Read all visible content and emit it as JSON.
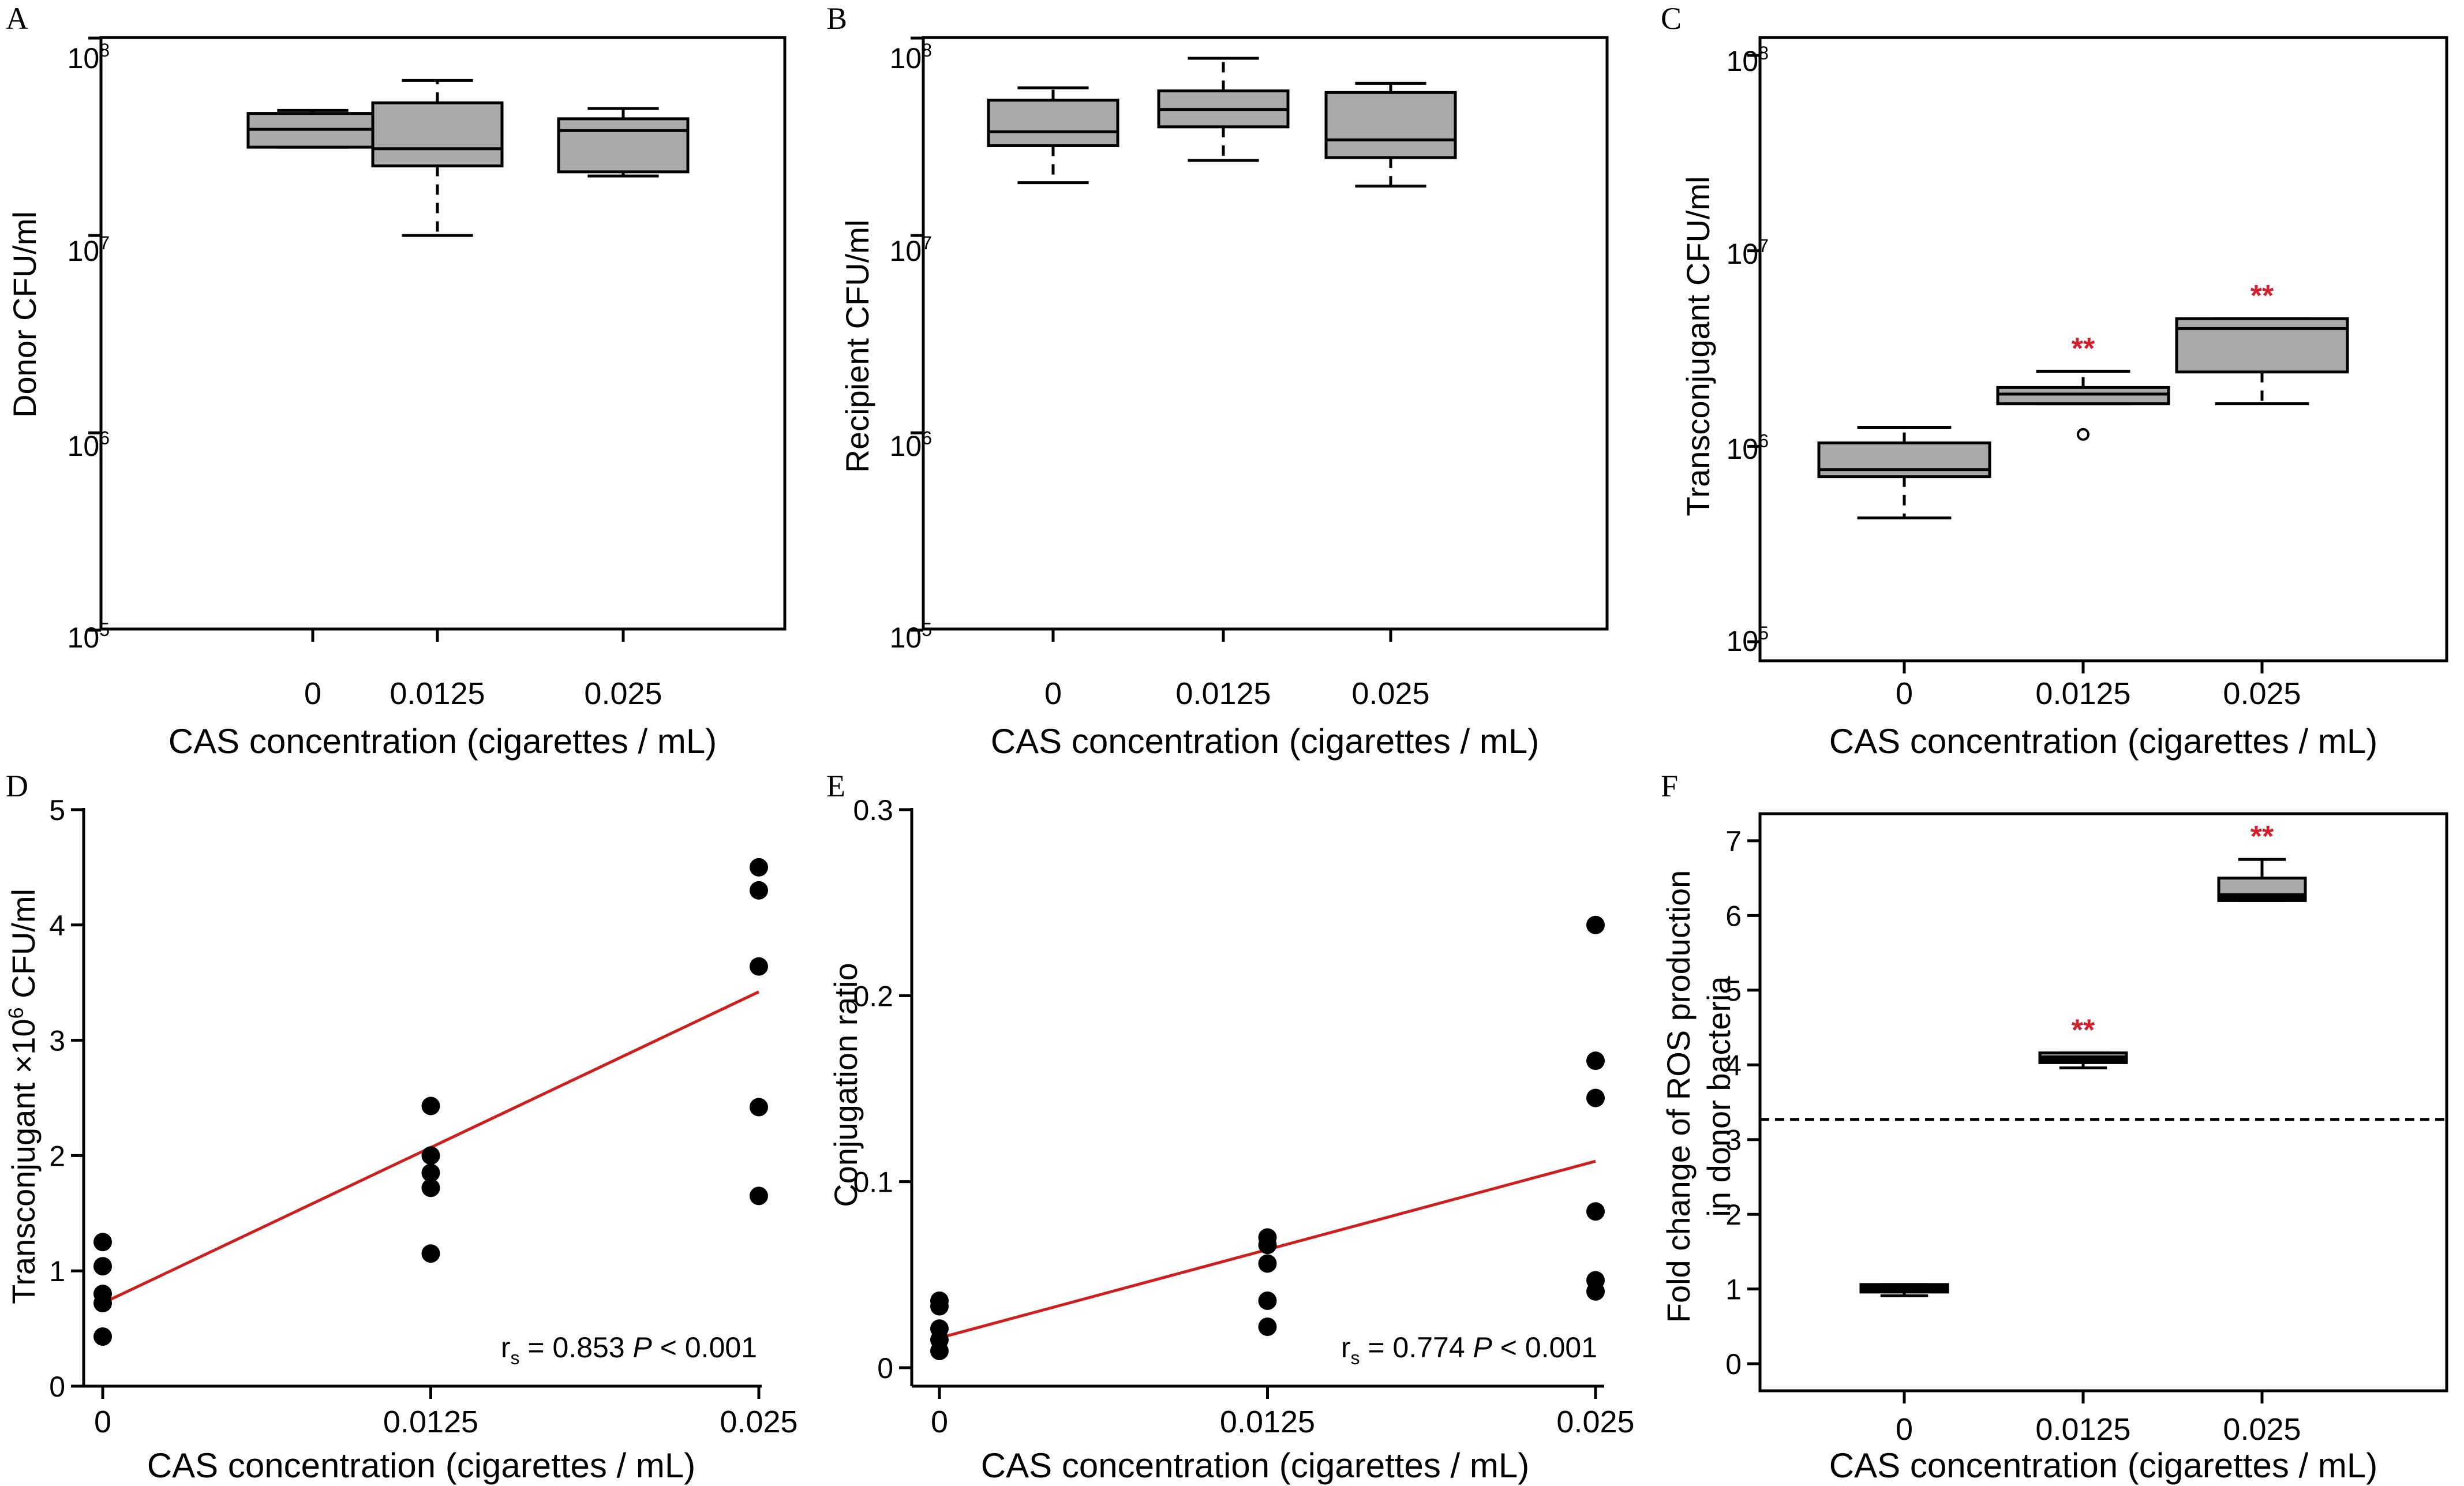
{
  "chart_data": [
    {
      "panel": "A",
      "type": "box",
      "yscale": "log",
      "ylabel": "Donor CFU/ml",
      "xlabel": "CAS concentration (cigarettes / mL)",
      "ylim": [
        100000,
        100000000
      ],
      "yticks": [
        {
          "base": "10",
          "exp": "5",
          "value": 100000
        },
        {
          "base": "10",
          "exp": "6",
          "value": 1000000
        },
        {
          "base": "10",
          "exp": "7",
          "value": 10000000
        },
        {
          "base": "10",
          "exp": "8",
          "value": 100000000
        }
      ],
      "categories": [
        "0",
        "0.0125",
        "0.025"
      ],
      "boxes": [
        {
          "min": 28000000,
          "q1": 28000000,
          "median": 34500000,
          "q3": 41500000,
          "max": 43000000,
          "sig": ""
        },
        {
          "min": 10000000,
          "q1": 22500000,
          "median": 27500000,
          "q3": 47000000,
          "max": 61000000,
          "sig": ""
        },
        {
          "min": 20000000,
          "q1": 21000000,
          "median": 34000000,
          "q3": 39000000,
          "max": 44000000,
          "sig": ""
        }
      ]
    },
    {
      "panel": "B",
      "type": "box",
      "yscale": "log",
      "ylabel": "Recipient CFU/ml",
      "xlabel": "CAS concentration (cigarettes / mL)",
      "ylim": [
        100000,
        100000000
      ],
      "yticks": [
        {
          "base": "10",
          "exp": "5",
          "value": 100000
        },
        {
          "base": "10",
          "exp": "6",
          "value": 1000000
        },
        {
          "base": "10",
          "exp": "7",
          "value": 10000000
        },
        {
          "base": "10",
          "exp": "8",
          "value": 100000000
        }
      ],
      "categories": [
        "0",
        "0.0125",
        "0.025"
      ],
      "boxes": [
        {
          "min": 18500000,
          "q1": 28500000,
          "median": 33500000,
          "q3": 48500000,
          "max": 56000000,
          "sig": ""
        },
        {
          "min": 24000000,
          "q1": 35500000,
          "median": 43500000,
          "q3": 54000000,
          "max": 79000000,
          "sig": ""
        },
        {
          "min": 17800000,
          "q1": 24800000,
          "median": 30500000,
          "q3": 53000000,
          "max": 59000000,
          "sig": ""
        }
      ]
    },
    {
      "panel": "C",
      "type": "box",
      "yscale": "log",
      "ylabel": "Transconjugant CFU/ml",
      "xlabel": "CAS concentration (cigarettes / mL)",
      "ylim": [
        100000,
        100000000
      ],
      "yticks": [
        {
          "base": "10",
          "exp": "5",
          "value": 100000
        },
        {
          "base": "10",
          "exp": "6",
          "value": 1000000
        },
        {
          "base": "10",
          "exp": "7",
          "value": 10000000
        },
        {
          "base": "10",
          "exp": "8",
          "value": 100000000
        }
      ],
      "categories": [
        "0",
        "0.0125",
        "0.025"
      ],
      "boxes": [
        {
          "min": 430000,
          "q1": 700000,
          "median": 760000,
          "q3": 1040000,
          "max": 1250000,
          "sig": ""
        },
        {
          "min": 1650000,
          "q1": 1650000,
          "median": 1850000,
          "q3": 2000000,
          "max": 2420000,
          "sig": "**"
        },
        {
          "min": 1650000,
          "q1": 2400000,
          "median": 4000000,
          "q3": 4500000,
          "max": 4500000,
          "sig": "**"
        }
      ],
      "outliers": [
        {
          "category": "0.0125",
          "value": 1150000
        }
      ]
    },
    {
      "panel": "D",
      "type": "scatter",
      "ylabel_main": "Transconjugant ×10",
      "ylabel_sup": "6",
      "ylabel_end": " CFU/ml",
      "xlabel": "CAS concentration (cigarettes / mL)",
      "xlim": [
        0,
        0.025
      ],
      "ylim": [
        0,
        5
      ],
      "xticks": [
        {
          "label": "0",
          "value": 0
        },
        {
          "label": "0.0125",
          "value": 0.0125
        },
        {
          "label": "0.025",
          "value": 0.025
        }
      ],
      "yticks": [
        {
          "label": "0",
          "value": 0
        },
        {
          "label": "1",
          "value": 1
        },
        {
          "label": "2",
          "value": 2
        },
        {
          "label": "3",
          "value": 3
        },
        {
          "label": "4",
          "value": 4
        },
        {
          "label": "5",
          "value": 5
        }
      ],
      "points": [
        [
          0,
          1.25
        ],
        [
          0,
          1.04
        ],
        [
          0,
          0.8
        ],
        [
          0,
          0.72
        ],
        [
          0,
          0.43
        ],
        [
          0.0125,
          2.43
        ],
        [
          0.0125,
          2.0
        ],
        [
          0.0125,
          1.85
        ],
        [
          0.0125,
          1.72
        ],
        [
          0.0125,
          1.15
        ],
        [
          0.025,
          4.5
        ],
        [
          0.025,
          4.3
        ],
        [
          0.025,
          3.64
        ],
        [
          0.025,
          2.42
        ],
        [
          0.025,
          1.65
        ]
      ],
      "fit_line": [
        [
          0,
          0.72
        ],
        [
          0.025,
          3.42
        ]
      ],
      "stat": {
        "r": "r",
        "sub": "s",
        "mid": " = 0.853 ",
        "p": "P",
        "end": " < 0.001"
      }
    },
    {
      "panel": "E",
      "type": "scatter",
      "ylabel": "Conjugation ratio",
      "xlabel": "CAS concentration (cigarettes / mL)",
      "xlim": [
        0,
        0.025
      ],
      "ylim": [
        0,
        0.3
      ],
      "xticks": [
        {
          "label": "0",
          "value": 0
        },
        {
          "label": "0.0125",
          "value": 0.0125
        },
        {
          "label": "0.025",
          "value": 0.025
        }
      ],
      "yticks": [
        {
          "label": "0",
          "value": 0
        },
        {
          "label": "0.1",
          "value": 0.1
        },
        {
          "label": "0.2",
          "value": 0.2
        },
        {
          "label": "0.3",
          "value": 0.3
        }
      ],
      "points": [
        [
          0,
          0.036
        ],
        [
          0,
          0.033
        ],
        [
          0,
          0.021
        ],
        [
          0,
          0.015
        ],
        [
          0,
          0.009
        ],
        [
          0.0125,
          0.07
        ],
        [
          0.0125,
          0.066
        ],
        [
          0.0125,
          0.056
        ],
        [
          0.0125,
          0.036
        ],
        [
          0.0125,
          0.022
        ],
        [
          0.025,
          0.238
        ],
        [
          0.025,
          0.165
        ],
        [
          0.025,
          0.145
        ],
        [
          0.025,
          0.084
        ],
        [
          0.025,
          0.047
        ],
        [
          0.025,
          0.041
        ]
      ],
      "fit_line": [
        [
          0,
          0.016
        ],
        [
          0.025,
          0.111
        ]
      ],
      "stat": {
        "r": "r",
        "sub": "s",
        "mid": " = 0.774 ",
        "p": "P",
        "end": " < 0.001"
      }
    },
    {
      "panel": "F",
      "type": "box",
      "ylabel_line1": "Fold change of ROS production",
      "ylabel_line2": "in donor bacteria",
      "xlabel": "CAS concentration (cigarettes / mL)",
      "ylim": [
        -0.3,
        7.3
      ],
      "yticks": [
        {
          "label": "0",
          "value": 0
        },
        {
          "label": "1",
          "value": 1
        },
        {
          "label": "2",
          "value": 2
        },
        {
          "label": "3",
          "value": 3
        },
        {
          "label": "4",
          "value": 4
        },
        {
          "label": "5",
          "value": 5
        },
        {
          "label": "6",
          "value": 6
        },
        {
          "label": "7",
          "value": 7
        }
      ],
      "categories": [
        "0",
        "0.0125",
        "0.025"
      ],
      "boxes": [
        {
          "min": 0.91,
          "q1": 0.96,
          "median": 1.0,
          "q3": 1.06,
          "max": 1.06,
          "sig": ""
        },
        {
          "min": 3.96,
          "q1": 4.03,
          "median": 4.08,
          "q3": 4.16,
          "max": 4.16,
          "sig": "**"
        },
        {
          "min": 6.2,
          "q1": 6.2,
          "median": 6.25,
          "q3": 6.5,
          "max": 6.75,
          "sig": "**"
        }
      ],
      "reference_line": 3.27
    }
  ],
  "colors": {
    "box_fill": "#aaaaaa",
    "sig": "#d0202e",
    "fit_line": "#cc1f1f",
    "axis": "#000000"
  }
}
